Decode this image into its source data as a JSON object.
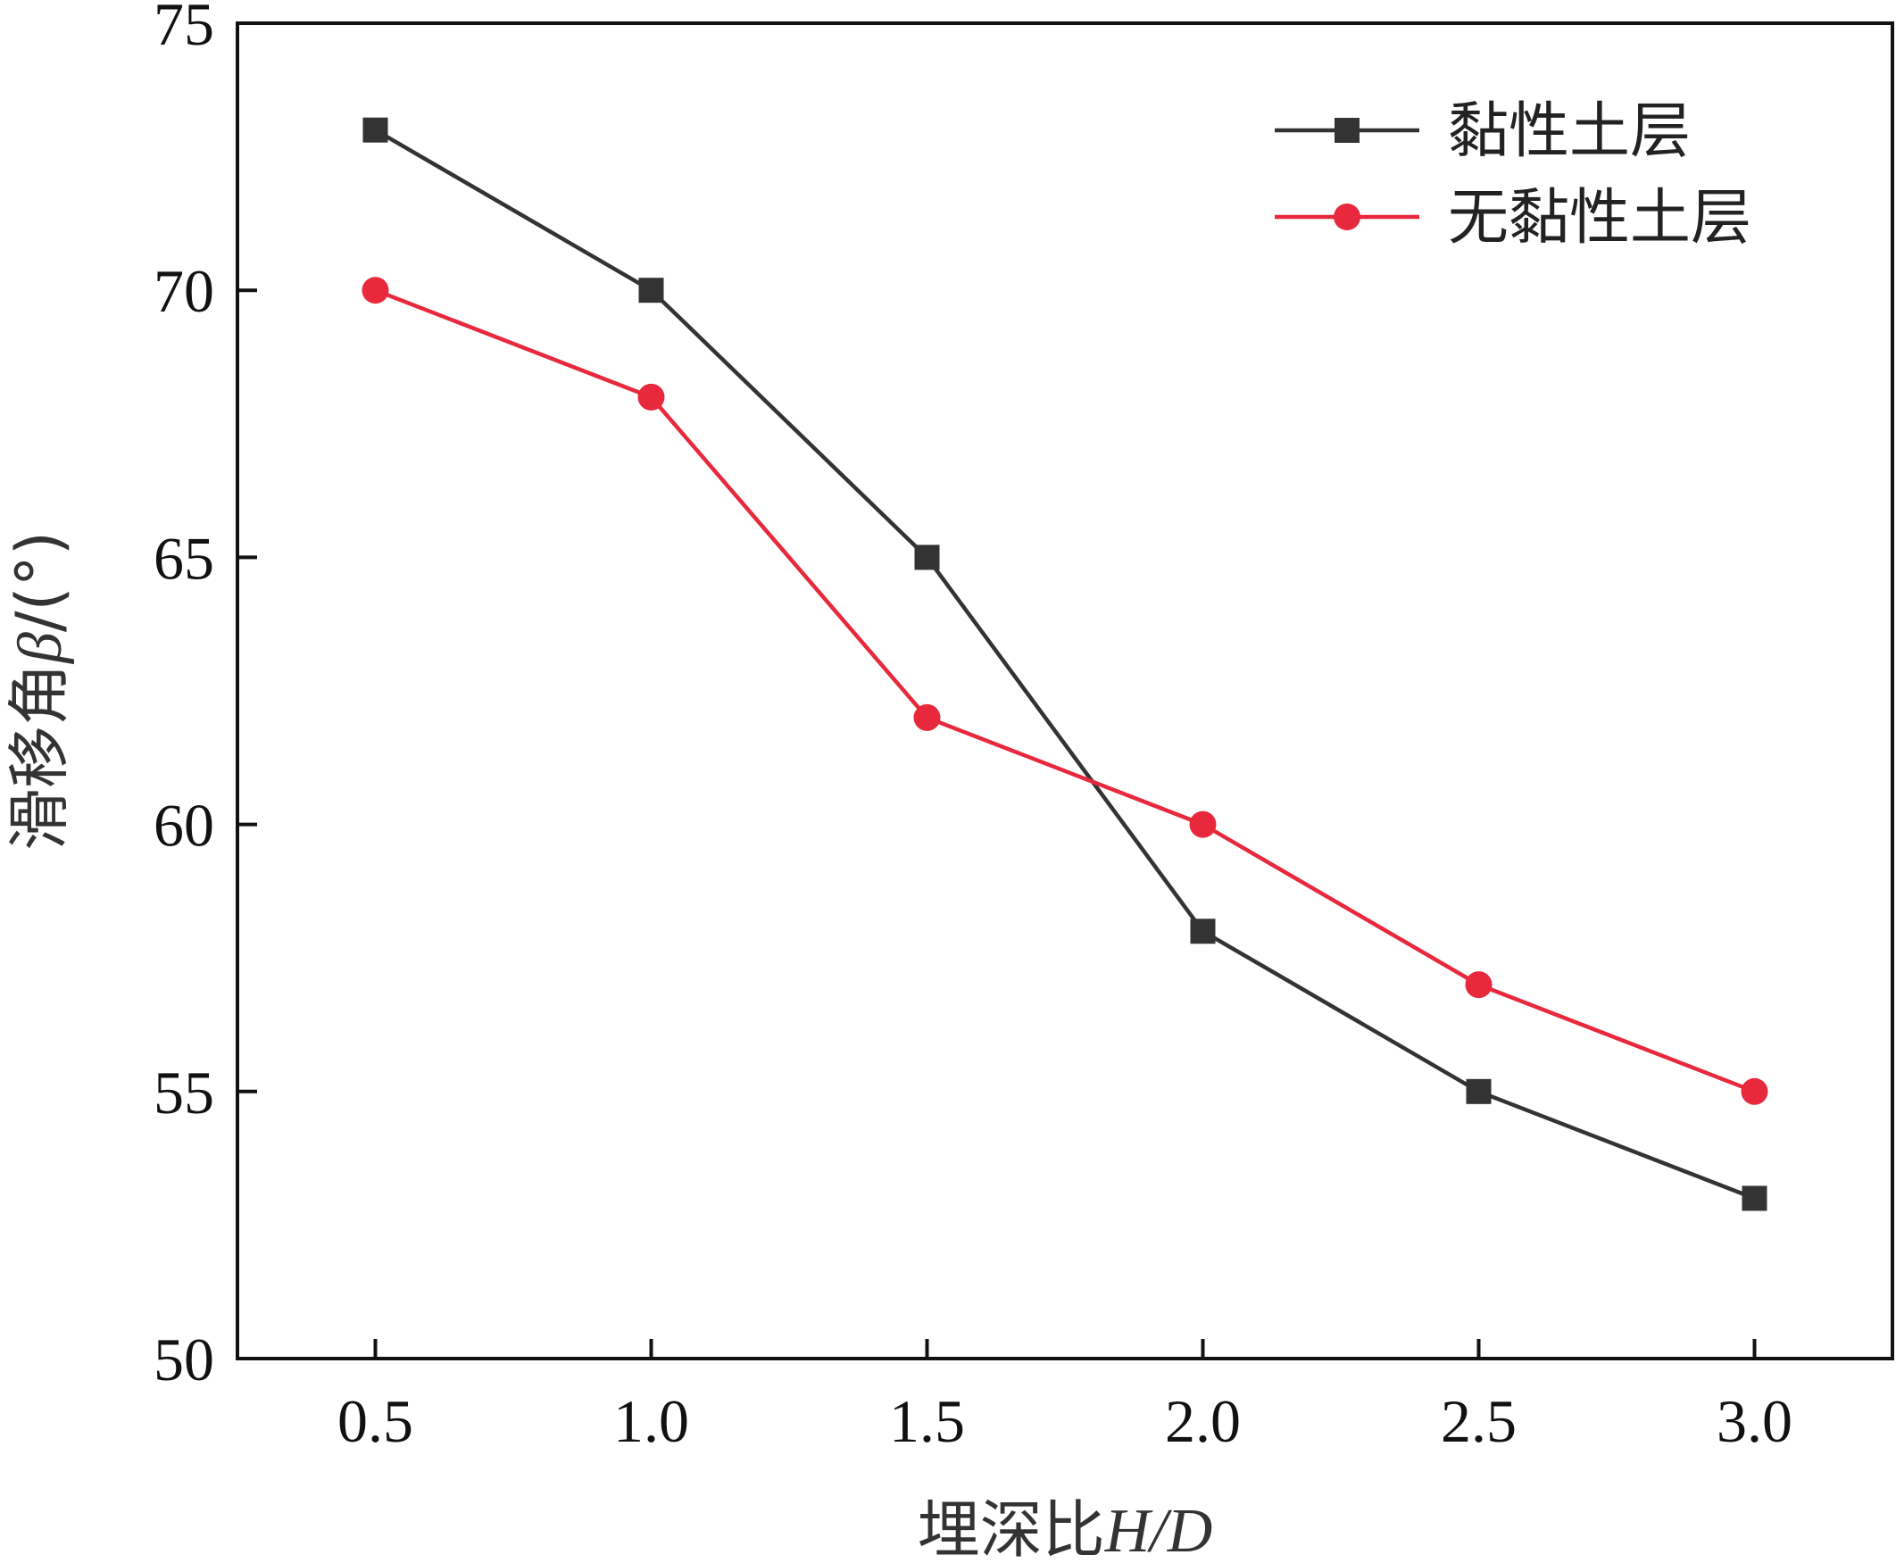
{
  "chart_data": {
    "type": "line",
    "x": [
      0.5,
      1.0,
      1.5,
      2.0,
      2.5,
      3.0
    ],
    "x_tick_labels": [
      "0.5",
      "1.0",
      "1.5",
      "2.0",
      "2.5",
      "3.0"
    ],
    "y_ticks": [
      50,
      55,
      60,
      65,
      70,
      75
    ],
    "y_tick_labels": [
      "50",
      "55",
      "60",
      "65",
      "70",
      "75"
    ],
    "xlim": [
      0.25,
      3.25
    ],
    "ylim": [
      50,
      75
    ],
    "xlabel": {
      "prefix": "埋深比",
      "italic": "H/D"
    },
    "ylabel": {
      "prefix": "滑移角",
      "italic": "β",
      "suffix": "/(°)"
    },
    "grid": false,
    "legend_position": "top-right",
    "series": [
      {
        "name": "黏性土层",
        "marker": "square",
        "color": "#333333",
        "values": [
          73,
          70,
          65,
          58,
          55,
          53
        ]
      },
      {
        "name": "无黏性土层",
        "marker": "circle",
        "color": "#e8283c",
        "values": [
          70,
          68,
          62,
          60,
          57,
          55
        ]
      }
    ]
  }
}
